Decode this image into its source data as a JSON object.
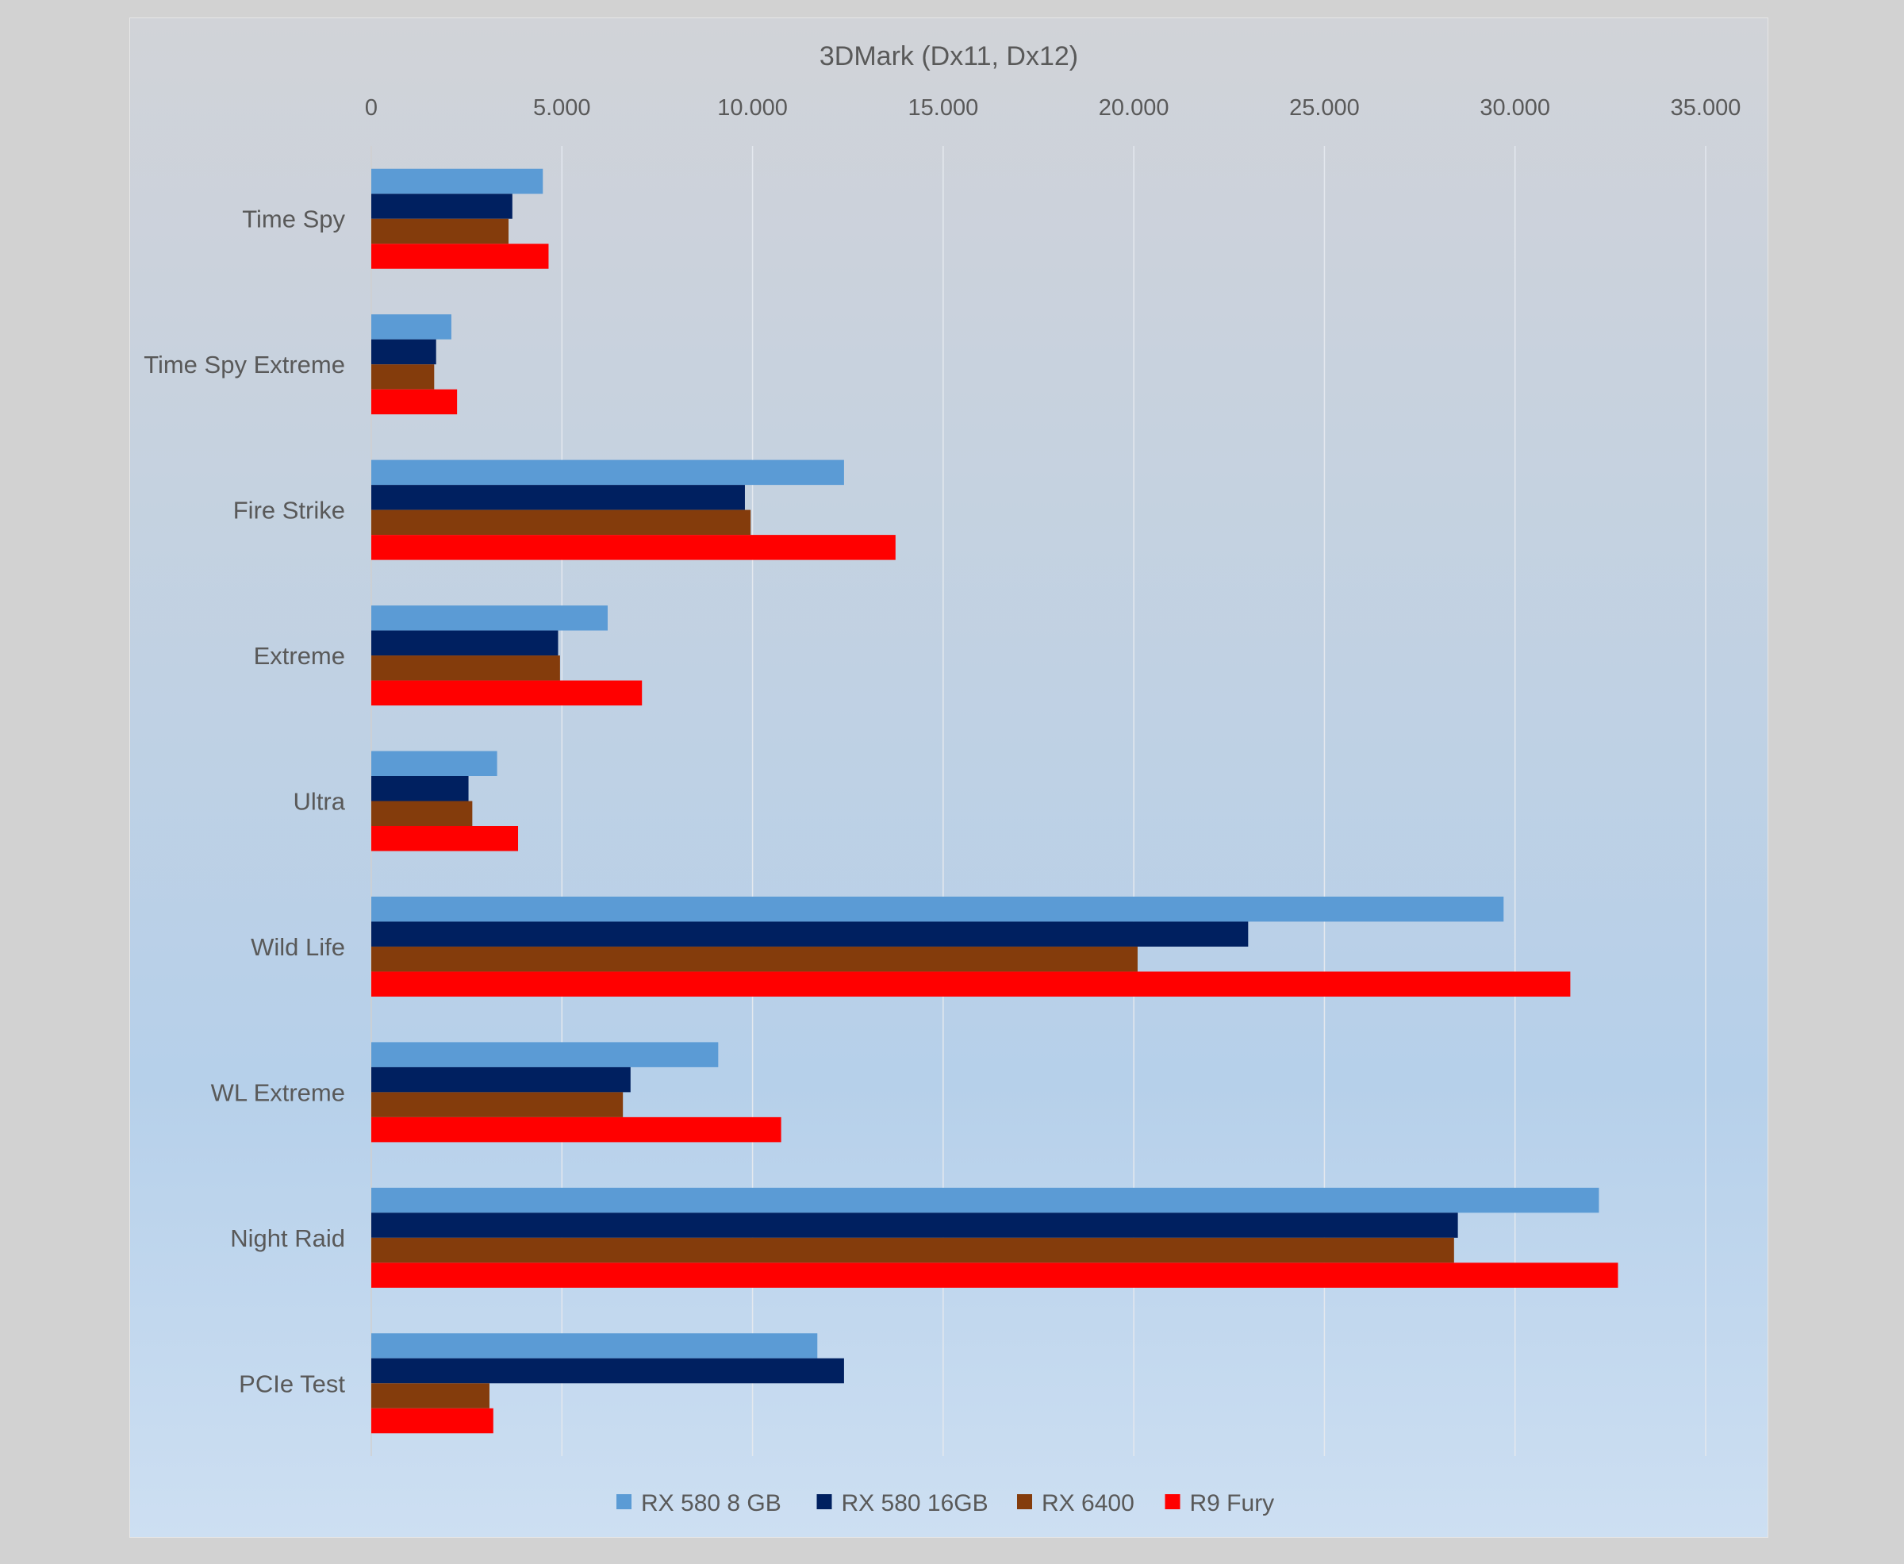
{
  "chart_data": {
    "type": "bar",
    "orientation": "horizontal",
    "title": "3DMark (Dx11, Dx12)",
    "xlabel": "",
    "ylabel": "",
    "xlim": [
      0,
      35000
    ],
    "ticks": [
      0,
      5000,
      10000,
      15000,
      20000,
      25000,
      30000,
      35000
    ],
    "tick_labels": [
      "0",
      "5.000",
      "10.000",
      "15.000",
      "20.000",
      "25.000",
      "30.000",
      "35.000"
    ],
    "grid": true,
    "legend_position": "bottom",
    "categories": [
      "Time Spy",
      "Time Spy Extreme",
      "Fire Strike",
      "Extreme",
      "Ultra",
      "Wild Life",
      "WL Extreme",
      "Night Raid",
      "PCIe Test"
    ],
    "series": [
      {
        "name": "RX 580 8 GB",
        "color": "#5b9bd5",
        "values": [
          4500,
          2100,
          12400,
          6200,
          3300,
          29700,
          9100,
          32200,
          11700
        ]
      },
      {
        "name": "RX 580 16GB",
        "color": "#002060",
        "values": [
          3700,
          1700,
          9800,
          4900,
          2550,
          23000,
          6800,
          28500,
          12400
        ]
      },
      {
        "name": "RX 6400",
        "color": "#843c0c",
        "values": [
          3600,
          1650,
          9950,
          4950,
          2650,
          20100,
          6600,
          28400,
          3100
        ]
      },
      {
        "name": "R9 Fury",
        "color": "#ff0000",
        "values": [
          4650,
          2250,
          13750,
          7100,
          3850,
          31450,
          10750,
          32700,
          3200
        ]
      }
    ]
  }
}
